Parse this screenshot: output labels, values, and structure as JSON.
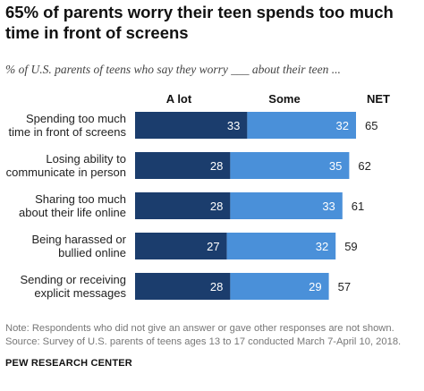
{
  "title": "65% of parents worry their teen spends too much time in front of screens",
  "subtitle": "% of U.S. parents of teens who say they worry ___ about their teen ...",
  "note": "Note: Respondents who did not give an answer or gave other responses are not shown.",
  "source": "Source: Survey of U.S. parents of teens ages 13 to 17 conducted March 7-April 10, 2018.",
  "brand": "PEW RESEARCH CENTER",
  "colors": {
    "a_lot": "#1b3d6d",
    "some": "#4a90d9",
    "label_text": "#ffffff"
  },
  "chart_data": {
    "type": "bar",
    "orientation": "horizontal",
    "stacked": true,
    "categories": [
      [
        "Spending too much",
        "time in front of screens"
      ],
      [
        "Losing ability to",
        "communicate in person"
      ],
      [
        "Sharing too much",
        "about their life online"
      ],
      [
        "Being harassed or",
        "bullied online"
      ],
      [
        "Sending or receiving",
        "explicit messages"
      ]
    ],
    "series": [
      {
        "name": "A lot",
        "values": [
          33,
          28,
          28,
          27,
          28
        ]
      },
      {
        "name": "Some",
        "values": [
          32,
          35,
          33,
          32,
          29
        ]
      }
    ],
    "net_label": "NET",
    "net": [
      65,
      62,
      61,
      59,
      57
    ],
    "grid": false
  }
}
